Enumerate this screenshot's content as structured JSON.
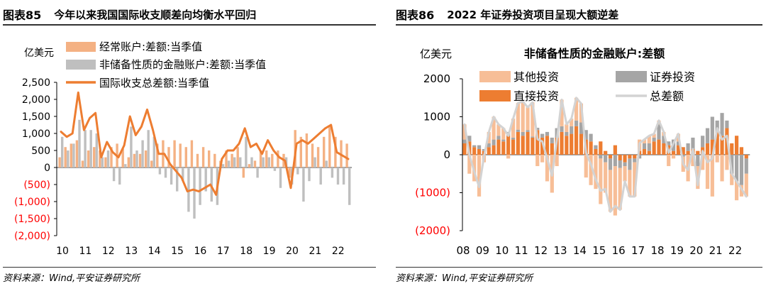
{
  "figures": [
    {
      "label": "图表85",
      "title": "今年以来我国国际收支顺差向均衡水平回归",
      "source": "资料来源：Wind,平安证券研究所"
    },
    {
      "label": "图表86",
      "title": "2022 年证券投资项目呈现大额逆差",
      "source": "资料来源：Wind,平安证券研究所"
    }
  ],
  "chart_data": [
    {
      "type": "bar",
      "ylabel": "亿美元",
      "ylim": [
        -2000,
        2500
      ],
      "yticks": [
        2500,
        2000,
        1500,
        1000,
        500,
        0,
        -500,
        -1000,
        -1500,
        -2000
      ],
      "ytick_labels": [
        "2,500",
        "2,000",
        "1,500",
        "1,000",
        "500",
        "0",
        "(500)",
        "(1,000)",
        "(1,500)",
        "(2,000)"
      ],
      "xtick_labels": [
        "10",
        "11",
        "12",
        "13",
        "14",
        "15",
        "16",
        "17",
        "18",
        "19",
        "20",
        "21",
        "22"
      ],
      "x_start_year": 2010,
      "points_per_year": 4,
      "negative_color": "#FF0000",
      "bar_series": [
        {
          "name": "经常账户:差额:当季值",
          "color": "#F4B183",
          "values": [
            300,
            600,
            700,
            800,
            200,
            500,
            600,
            500,
            300,
            600,
            700,
            550,
            300,
            400,
            400,
            500,
            200,
            700,
            800,
            600,
            800,
            700,
            600,
            800,
            400,
            600,
            500,
            400,
            200,
            500,
            400,
            600,
            -300,
            100,
            200,
            500,
            500,
            400,
            500,
            400,
            -300,
            1100,
            900,
            1000,
            700,
            600,
            900,
            1200,
            900,
            800,
            700
          ]
        },
        {
          "name": "非储备性质的金融账户:差额:当季值",
          "color": "#BFBFBF",
          "values": [
            900,
            500,
            700,
            1400,
            1100,
            1100,
            1000,
            300,
            500,
            -400,
            -500,
            100,
            1200,
            500,
            800,
            1100,
            900,
            -200,
            -300,
            -500,
            -700,
            -400,
            -1300,
            -1500,
            -1100,
            -700,
            -1000,
            -1100,
            100,
            200,
            300,
            300,
            900,
            300,
            -300,
            300,
            300,
            -100,
            -600,
            300,
            -500,
            -200,
            -1000,
            -400,
            300,
            -500,
            200,
            -300,
            -500,
            -500,
            -1100
          ]
        }
      ],
      "line_series": [
        {
          "name": "国际收支总差额:当季值",
          "color": "#ED7D31",
          "values": [
            1050,
            900,
            1000,
            2200,
            1100,
            1450,
            1600,
            300,
            750,
            450,
            300,
            650,
            1500,
            950,
            1200,
            1700,
            1100,
            400,
            400,
            100,
            -100,
            -300,
            -700,
            -650,
            -700,
            -600,
            -500,
            -800,
            250,
            500,
            500,
            700,
            1150,
            600,
            700,
            400,
            800,
            500,
            300,
            200,
            -600,
            700,
            800,
            700,
            850,
            1000,
            1150,
            1250,
            450,
            350,
            250
          ]
        }
      ]
    },
    {
      "type": "bar",
      "stacked": true,
      "title": "非储备性质的金融账户:差额",
      "ylabel": "亿美元",
      "ylim": [
        -2000,
        2000
      ],
      "yticks": [
        2000,
        1000,
        0,
        -1000,
        -2000
      ],
      "ytick_labels": [
        "2000",
        "1000",
        "0",
        "(1000)",
        "(2000)"
      ],
      "xtick_labels": [
        "08",
        "09",
        "10",
        "11",
        "12",
        "13",
        "14",
        "15",
        "16",
        "17",
        "18",
        "19",
        "20",
        "21",
        "22"
      ],
      "x_start_year": 2008,
      "points_per_year": 4,
      "negative_color": "#FF0000",
      "bar_series": [
        {
          "name": "其他投资",
          "color": "#F7BE97",
          "values": [
            400,
            -500,
            -700,
            -1100,
            -200,
            300,
            600,
            300,
            300,
            -100,
            500,
            700,
            800,
            600,
            900,
            -300,
            -200,
            -700,
            -1000,
            -300,
            700,
            200,
            200,
            600,
            500,
            -600,
            -800,
            -900,
            -1200,
            -800,
            -1100,
            -1300,
            -1100,
            -400,
            -700,
            -900,
            300,
            100,
            200,
            100,
            100,
            100,
            -300,
            -100,
            200,
            -400,
            -700,
            -300,
            -600,
            -400,
            -900,
            -1100,
            -200,
            -700,
            -400,
            -300,
            -500,
            -300,
            -600
          ]
        },
        {
          "name": "证券投资",
          "color": "#A5A5A5",
          "values": [
            100,
            150,
            50,
            100,
            50,
            100,
            150,
            100,
            50,
            100,
            50,
            60,
            100,
            50,
            30,
            60,
            100,
            100,
            150,
            250,
            150,
            100,
            200,
            150,
            300,
            250,
            200,
            100,
            -100,
            -200,
            -300,
            -300,
            -200,
            -100,
            -300,
            -100,
            -100,
            150,
            200,
            100,
            400,
            200,
            100,
            300,
            100,
            -50,
            200,
            300,
            -300,
            300,
            400,
            600,
            300,
            600,
            200,
            -500,
            -700,
            -800,
            -400
          ]
        },
        {
          "name": "直接投资",
          "color": "#ED7D31",
          "values": [
            300,
            350,
            200,
            150,
            100,
            200,
            250,
            400,
            350,
            500,
            400,
            600,
            500,
            600,
            450,
            650,
            450,
            500,
            300,
            450,
            600,
            500,
            550,
            750,
            550,
            400,
            350,
            150,
            350,
            100,
            -100,
            250,
            -150,
            -200,
            -100,
            -100,
            100,
            150,
            100,
            350,
            400,
            300,
            250,
            100,
            250,
            200,
            100,
            150,
            100,
            200,
            300,
            400,
            600,
            500,
            700,
            300,
            500,
            200,
            -100
          ]
        }
      ],
      "line_series": [
        {
          "name": "总差额",
          "color": "#D3D3D3",
          "values": [
            800,
            0,
            -450,
            -850,
            -50,
            600,
            1000,
            800,
            700,
            500,
            950,
            1360,
            1400,
            1250,
            1380,
            410,
            350,
            -100,
            -550,
            400,
            1450,
            800,
            950,
            1500,
            1350,
            50,
            -250,
            -650,
            -950,
            -900,
            -1500,
            -1350,
            -1450,
            -700,
            -1100,
            -1100,
            300,
            400,
            500,
            550,
            900,
            600,
            50,
            300,
            550,
            -250,
            -400,
            150,
            -800,
            100,
            -200,
            -100,
            700,
            400,
            500,
            -500,
            -700,
            -900,
            -1100
          ]
        }
      ]
    }
  ]
}
